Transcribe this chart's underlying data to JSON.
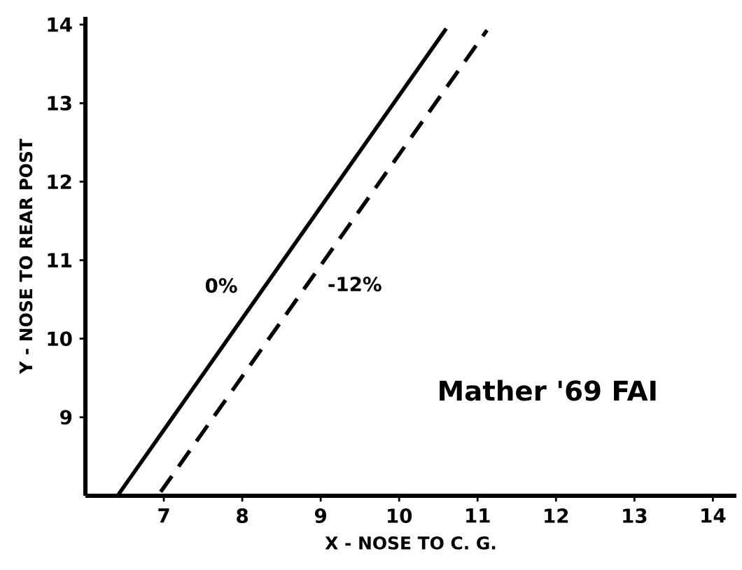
{
  "chart_data": {
    "type": "line",
    "xlabel": "X - NOSE TO C. G.",
    "ylabel": "Y - NOSE TO REAR POST",
    "series": [
      {
        "name": "0%",
        "color": "#000000",
        "line_style": "solid",
        "x": [
          6.41,
          10.6
        ],
        "values": [
          8,
          13.95
        ]
      },
      {
        "name": "-12%",
        "color": "#000000",
        "line_style": "dashed",
        "x": [
          6.96,
          11.12
        ],
        "values": [
          8.05,
          13.93
        ]
      }
    ],
    "xlim": [
      6,
      14.3
    ],
    "ylim": [
      8,
      14.1
    ],
    "xticks": [
      7,
      8,
      9,
      10,
      11,
      12,
      13,
      14
    ],
    "yticks": [
      9,
      10,
      11,
      12,
      13,
      14
    ],
    "grid": false,
    "marker": "none",
    "annotations": [
      "Mather '69 FAI"
    ]
  }
}
